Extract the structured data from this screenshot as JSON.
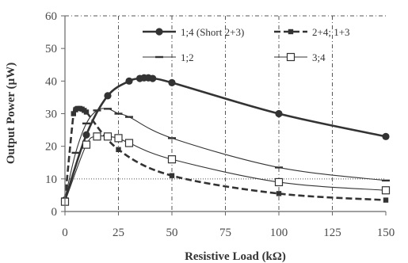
{
  "chart_data": {
    "type": "line",
    "title": "",
    "xlabel": "Resistive Load (kΩ)",
    "ylabel": "Output Power (µW)",
    "xlim": [
      0,
      150
    ],
    "ylim": [
      0,
      60
    ],
    "x_ticks": [
      "0",
      "25",
      "50",
      "75",
      "100",
      "125",
      "150"
    ],
    "y_ticks": [
      "0",
      "10",
      "20",
      "30",
      "40",
      "50",
      "60"
    ],
    "grid": "dash-dot, x only; dotted line at y = 10",
    "legend_position": "top-right",
    "series": [
      {
        "name": "1;4 (Short 2+3)",
        "marker": "circle",
        "line": "solid",
        "line_weight": "heavy",
        "x": [
          0,
          10,
          20,
          30,
          35,
          37,
          39,
          41,
          50,
          100,
          150
        ],
        "y": [
          3.5,
          23.5,
          35.5,
          40,
          40.8,
          41,
          41,
          40.8,
          39.5,
          30,
          23
        ]
      },
      {
        "name": "2+4; 1+3",
        "marker": "square",
        "line": "dashed",
        "line_weight": "heavy",
        "x": [
          0,
          4,
          5,
          6,
          7,
          8,
          9,
          10,
          25,
          50,
          100,
          150
        ],
        "y": [
          3.5,
          30,
          31.2,
          31.6,
          31.6,
          31.4,
          31,
          30.5,
          19,
          11,
          5.5,
          3.5
        ]
      },
      {
        "name": "1;2",
        "marker": "dash",
        "line": "solid",
        "line_weight": "thin",
        "x": [
          0,
          5,
          10,
          15,
          20,
          25,
          30,
          50,
          100,
          150
        ],
        "y": [
          4,
          18,
          27,
          31,
          31.5,
          30,
          29,
          22.5,
          13.5,
          9.5
        ]
      },
      {
        "name": "3;4",
        "marker": "open-square",
        "line": "solid",
        "line_weight": "thin",
        "x": [
          0,
          10,
          15,
          20,
          25,
          30,
          50,
          100,
          150
        ],
        "y": [
          3,
          20.5,
          23,
          23,
          22.5,
          21,
          16,
          9,
          6.5
        ]
      }
    ],
    "colors": {
      "series_main": "#333333",
      "axis": "#666666",
      "grid": "#555555",
      "background": "#ffffff"
    }
  }
}
